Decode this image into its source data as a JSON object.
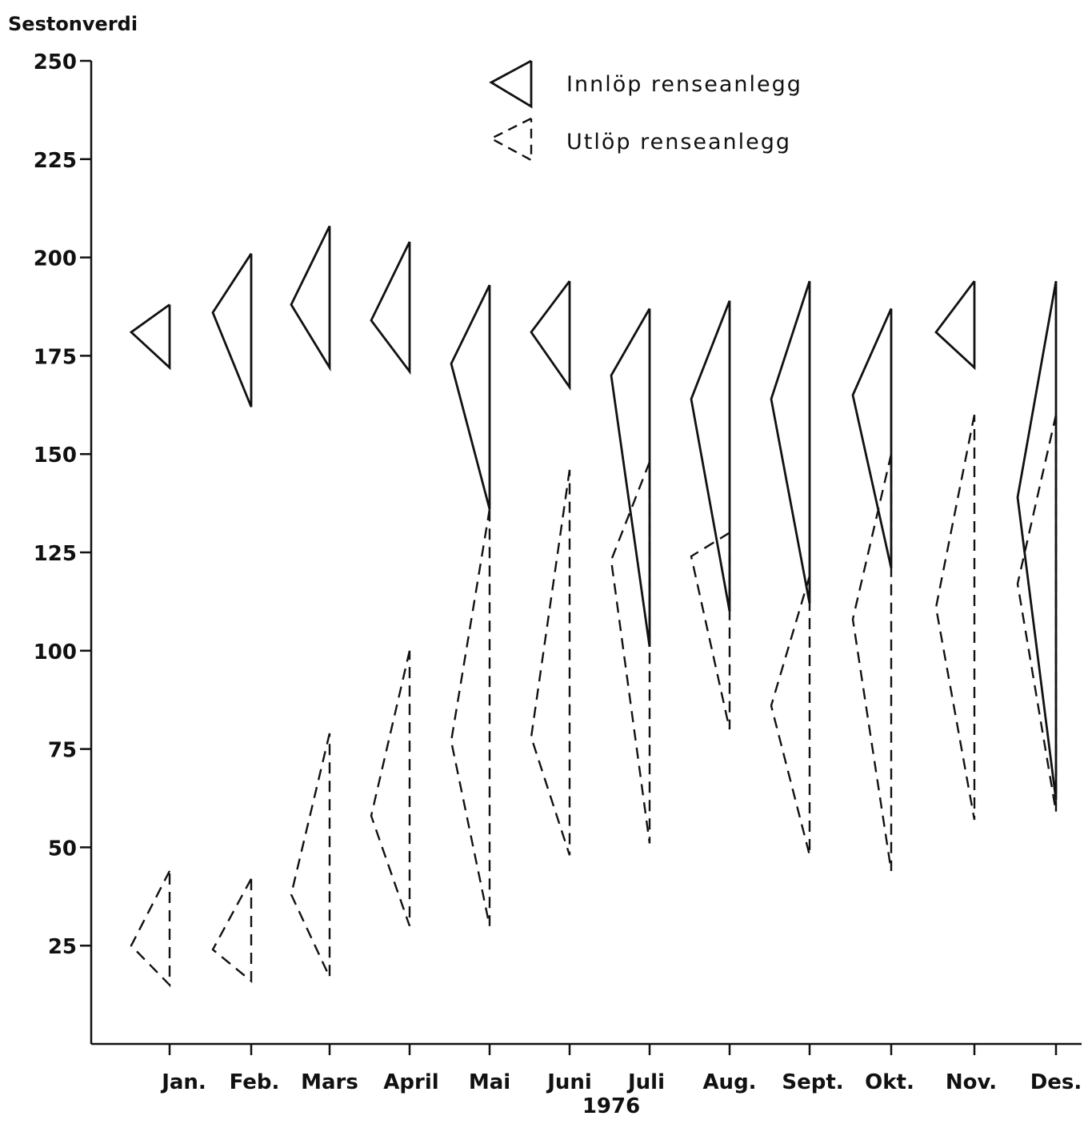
{
  "chart_data": {
    "type": "line",
    "title": "Sestonverdi",
    "xlabel": "1976",
    "ylabel": "Sestonverdi",
    "ylim": [
      0,
      250
    ],
    "yticks": [
      25,
      50,
      75,
      100,
      125,
      150,
      175,
      200,
      225,
      250
    ],
    "categories": [
      "Jan.",
      "Feb.",
      "Mars",
      "April",
      "Mai",
      "Juni",
      "Juli",
      "Aug.",
      "Sept.",
      "Okt.",
      "Nov.",
      "Des."
    ],
    "grid": false,
    "legend_position": "top-center",
    "series": [
      {
        "name": "Innlöp renseanlegg",
        "style": "solid",
        "mean": [
          181,
          186,
          188,
          184,
          173,
          181,
          170,
          164,
          164,
          165,
          181,
          139
        ],
        "max": [
          188,
          201,
          208,
          204,
          193,
          194,
          187,
          189,
          194,
          187,
          194,
          194
        ],
        "min": [
          172,
          162,
          172,
          171,
          136,
          167,
          101,
          110,
          112,
          121,
          172,
          62
        ]
      },
      {
        "name": "Utlöp renseanlegg",
        "style": "dashed",
        "mean": [
          25,
          24,
          38,
          58,
          77,
          78,
          123,
          124,
          86,
          108,
          111,
          117
        ],
        "max": [
          44,
          42,
          79,
          100,
          136,
          146,
          148,
          130,
          119,
          150,
          160,
          160
        ],
        "min": [
          15,
          16,
          17,
          30,
          30,
          48,
          51,
          80,
          48,
          44,
          57,
          59
        ]
      }
    ]
  }
}
